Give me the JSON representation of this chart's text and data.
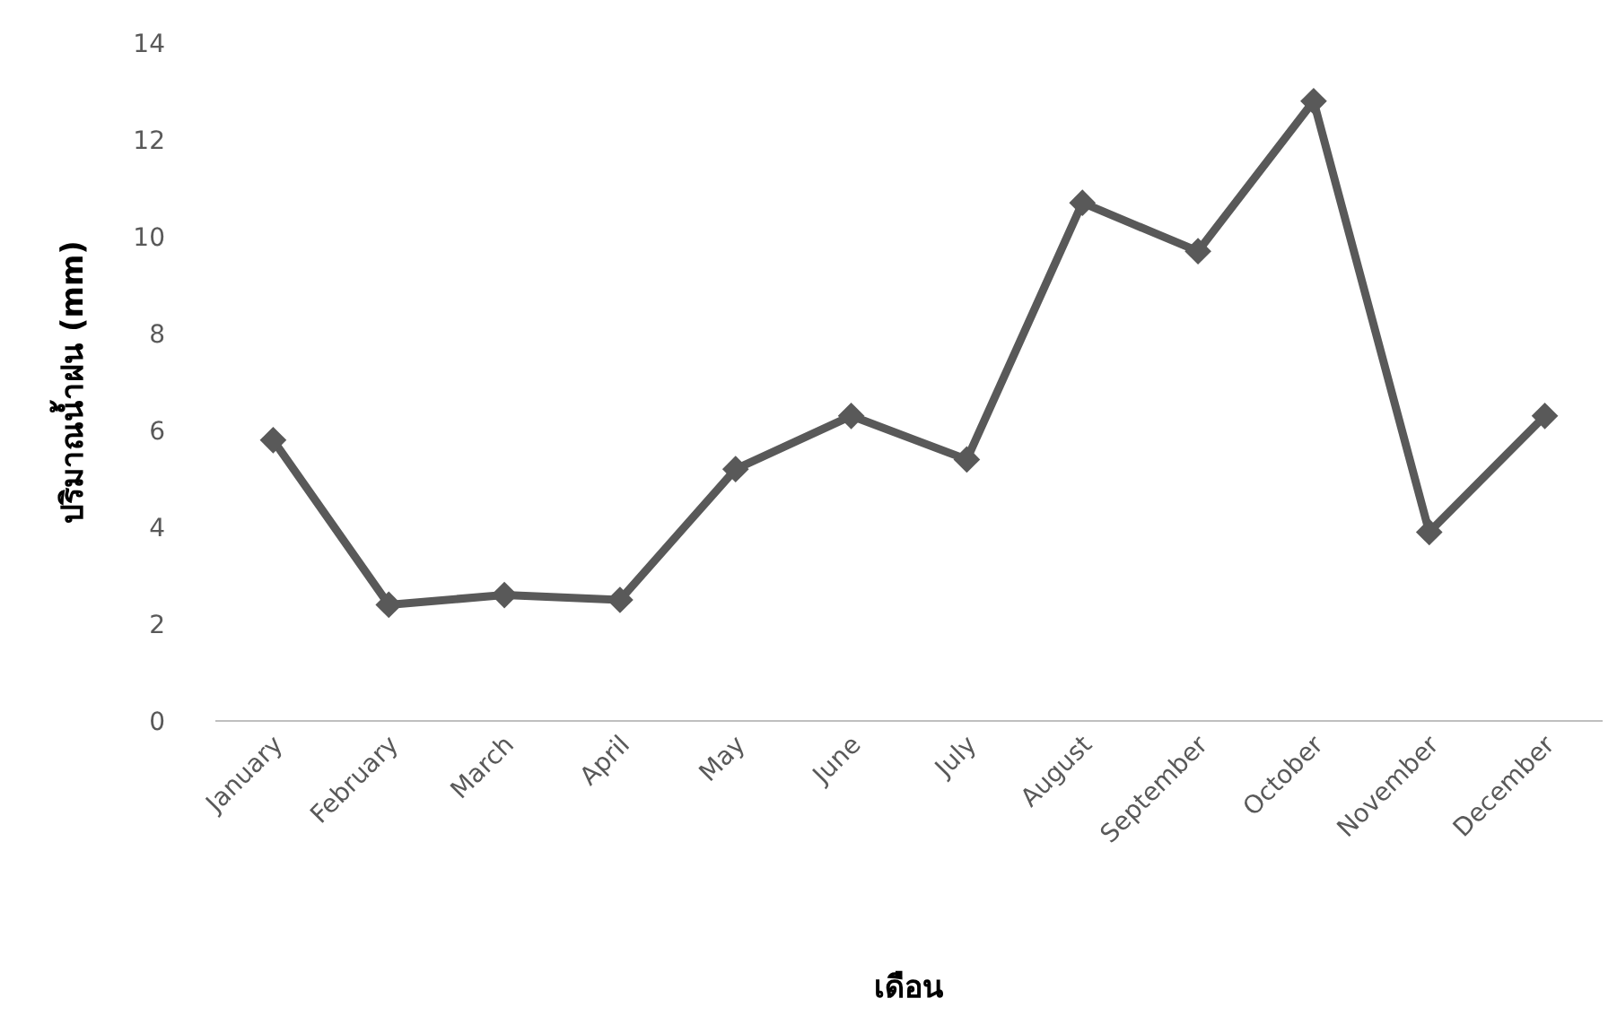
{
  "chart_data": {
    "type": "line",
    "xlabel": "เดือน",
    "ylabel": "ปริมาณน้ำฝน (mm)",
    "categories": [
      "January",
      "February",
      "March",
      "April",
      "May",
      "June",
      "July",
      "August",
      "September",
      "October",
      "November",
      "December"
    ],
    "series": [
      {
        "color": "#595959",
        "values": [
          5.8,
          2.4,
          2.6,
          2.5,
          5.2,
          6.3,
          5.4,
          10.7,
          9.7,
          12.8,
          3.9,
          6.3
        ]
      }
    ],
    "ylim": [
      0,
      14
    ],
    "yticks": [
      0,
      2,
      4,
      6,
      8,
      10,
      12,
      14
    ],
    "marker": "diamond",
    "line_style": "solid",
    "grid": false
  }
}
